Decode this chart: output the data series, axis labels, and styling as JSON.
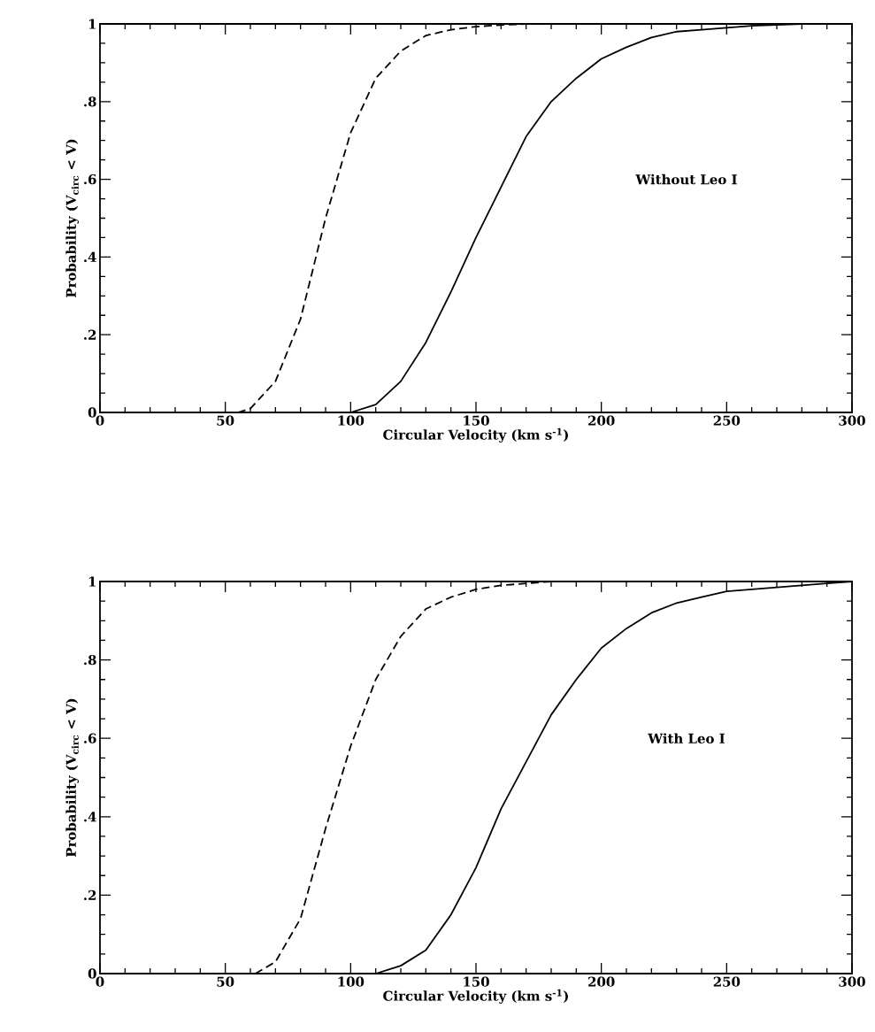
{
  "chart_data": [
    {
      "type": "line",
      "xlabel": "Circular Velocity (km s$^{-1}$)",
      "ylabel": "Probability (V$_{circ}$ < V)",
      "annotations": [
        "Without Leo I"
      ],
      "xlim": [
        0,
        300
      ],
      "ylim": [
        0,
        1
      ],
      "xticks": [
        0,
        50,
        100,
        150,
        200,
        250,
        300
      ],
      "yticks": [
        0,
        {
          "value": 0.2,
          "label": ".2"
        },
        {
          "value": 0.4,
          "label": ".4"
        },
        {
          "value": 0.6,
          "label": ".6"
        },
        {
          "value": 0.8,
          "label": ".8"
        },
        1
      ],
      "series": [
        {
          "color": "#000000",
          "line_style": "dashed",
          "x": [
            55,
            60,
            70,
            80,
            90,
            100,
            110,
            120,
            130,
            140,
            150,
            160,
            170,
            300
          ],
          "values": [
            0,
            0.01,
            0.08,
            0.24,
            0.5,
            0.72,
            0.86,
            0.93,
            0.97,
            0.985,
            0.993,
            0.997,
            1,
            1
          ]
        },
        {
          "color": "#000000",
          "line_style": "solid",
          "x": [
            100,
            110,
            120,
            130,
            140,
            150,
            160,
            170,
            180,
            190,
            200,
            210,
            220,
            230,
            240,
            250,
            260,
            280,
            300
          ],
          "values": [
            0,
            0.02,
            0.08,
            0.18,
            0.31,
            0.45,
            0.58,
            0.71,
            0.8,
            0.86,
            0.91,
            0.94,
            0.965,
            0.98,
            0.985,
            0.99,
            0.995,
            1,
            1
          ]
        }
      ]
    },
    {
      "type": "line",
      "xlabel": "Circular Velocity (km s$^{-1}$)",
      "ylabel": "Probability (V$_{circ}$ < V)",
      "annotations": [
        "With Leo I"
      ],
      "xlim": [
        0,
        300
      ],
      "ylim": [
        0,
        1
      ],
      "xticks": [
        0,
        50,
        100,
        150,
        200,
        250,
        300
      ],
      "yticks": [
        0,
        {
          "value": 0.2,
          "label": ".2"
        },
        {
          "value": 0.4,
          "label": ".4"
        },
        {
          "value": 0.6,
          "label": ".6"
        },
        {
          "value": 0.8,
          "label": ".8"
        },
        1
      ],
      "series": [
        {
          "color": "#000000",
          "line_style": "dashed",
          "x": [
            62,
            70,
            80,
            90,
            100,
            110,
            120,
            130,
            140,
            150,
            160,
            170,
            180,
            300
          ],
          "values": [
            0,
            0.03,
            0.14,
            0.37,
            0.58,
            0.75,
            0.86,
            0.93,
            0.96,
            0.98,
            0.99,
            0.995,
            1,
            1
          ]
        },
        {
          "color": "#000000",
          "line_style": "solid",
          "x": [
            110,
            120,
            130,
            140,
            150,
            160,
            170,
            180,
            190,
            200,
            210,
            220,
            230,
            240,
            250,
            260,
            270,
            280,
            290,
            300
          ],
          "values": [
            0,
            0.02,
            0.06,
            0.15,
            0.27,
            0.42,
            0.54,
            0.66,
            0.75,
            0.83,
            0.88,
            0.92,
            0.945,
            0.96,
            0.975,
            0.98,
            0.985,
            0.99,
            0.995,
            1
          ]
        }
      ]
    }
  ]
}
